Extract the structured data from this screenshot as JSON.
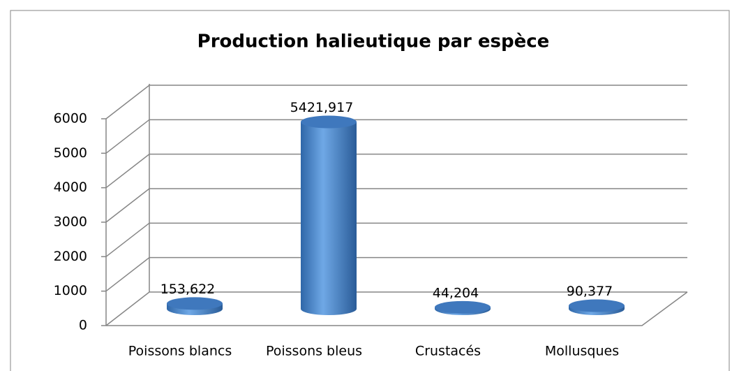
{
  "chart_data": {
    "type": "bar3d",
    "title": "Production halieutique  par espèce",
    "categories": [
      "Poissons blancs",
      "Poissons bleus",
      "Crustacés",
      "Mollusques"
    ],
    "values": [
      153.622,
      5421.917,
      44.204,
      90.377
    ],
    "value_labels": [
      "153,622",
      "5421,917",
      "44,204",
      "90,377"
    ],
    "color": "#4a86c8",
    "ylim": [
      0,
      6000
    ],
    "yticks": [
      0,
      1000,
      2000,
      3000,
      4000,
      5000,
      6000
    ],
    "grid": true
  }
}
